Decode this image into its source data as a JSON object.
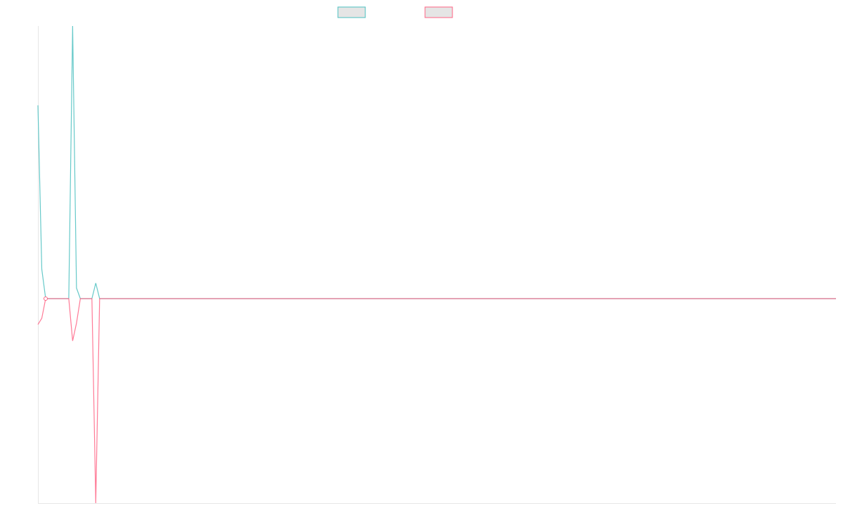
{
  "chart_data": {
    "type": "line",
    "title": "",
    "xlabel": "",
    "ylabel": "",
    "ylim": [
      -0.75,
      1
    ],
    "grid": false,
    "legend_placement": "top",
    "point_count": 208,
    "series": [
      {
        "color": "#4bc0c0",
        "nonzero": {
          "0": 0.709,
          "1": 0.108,
          "9": 1.0,
          "10": 0.039,
          "15": 0.057
        }
      },
      {
        "color": "#ff6384",
        "nonzero": {
          "0": -0.095,
          "1": -0.072,
          "9": -0.155,
          "10": -0.09,
          "15": -0.75
        }
      }
    ],
    "legend": [
      {
        "color": "#4bc0c0",
        "fill": "#e5e5e5"
      },
      {
        "color": "#ff6384",
        "fill": "#e5e5e5"
      }
    ]
  }
}
